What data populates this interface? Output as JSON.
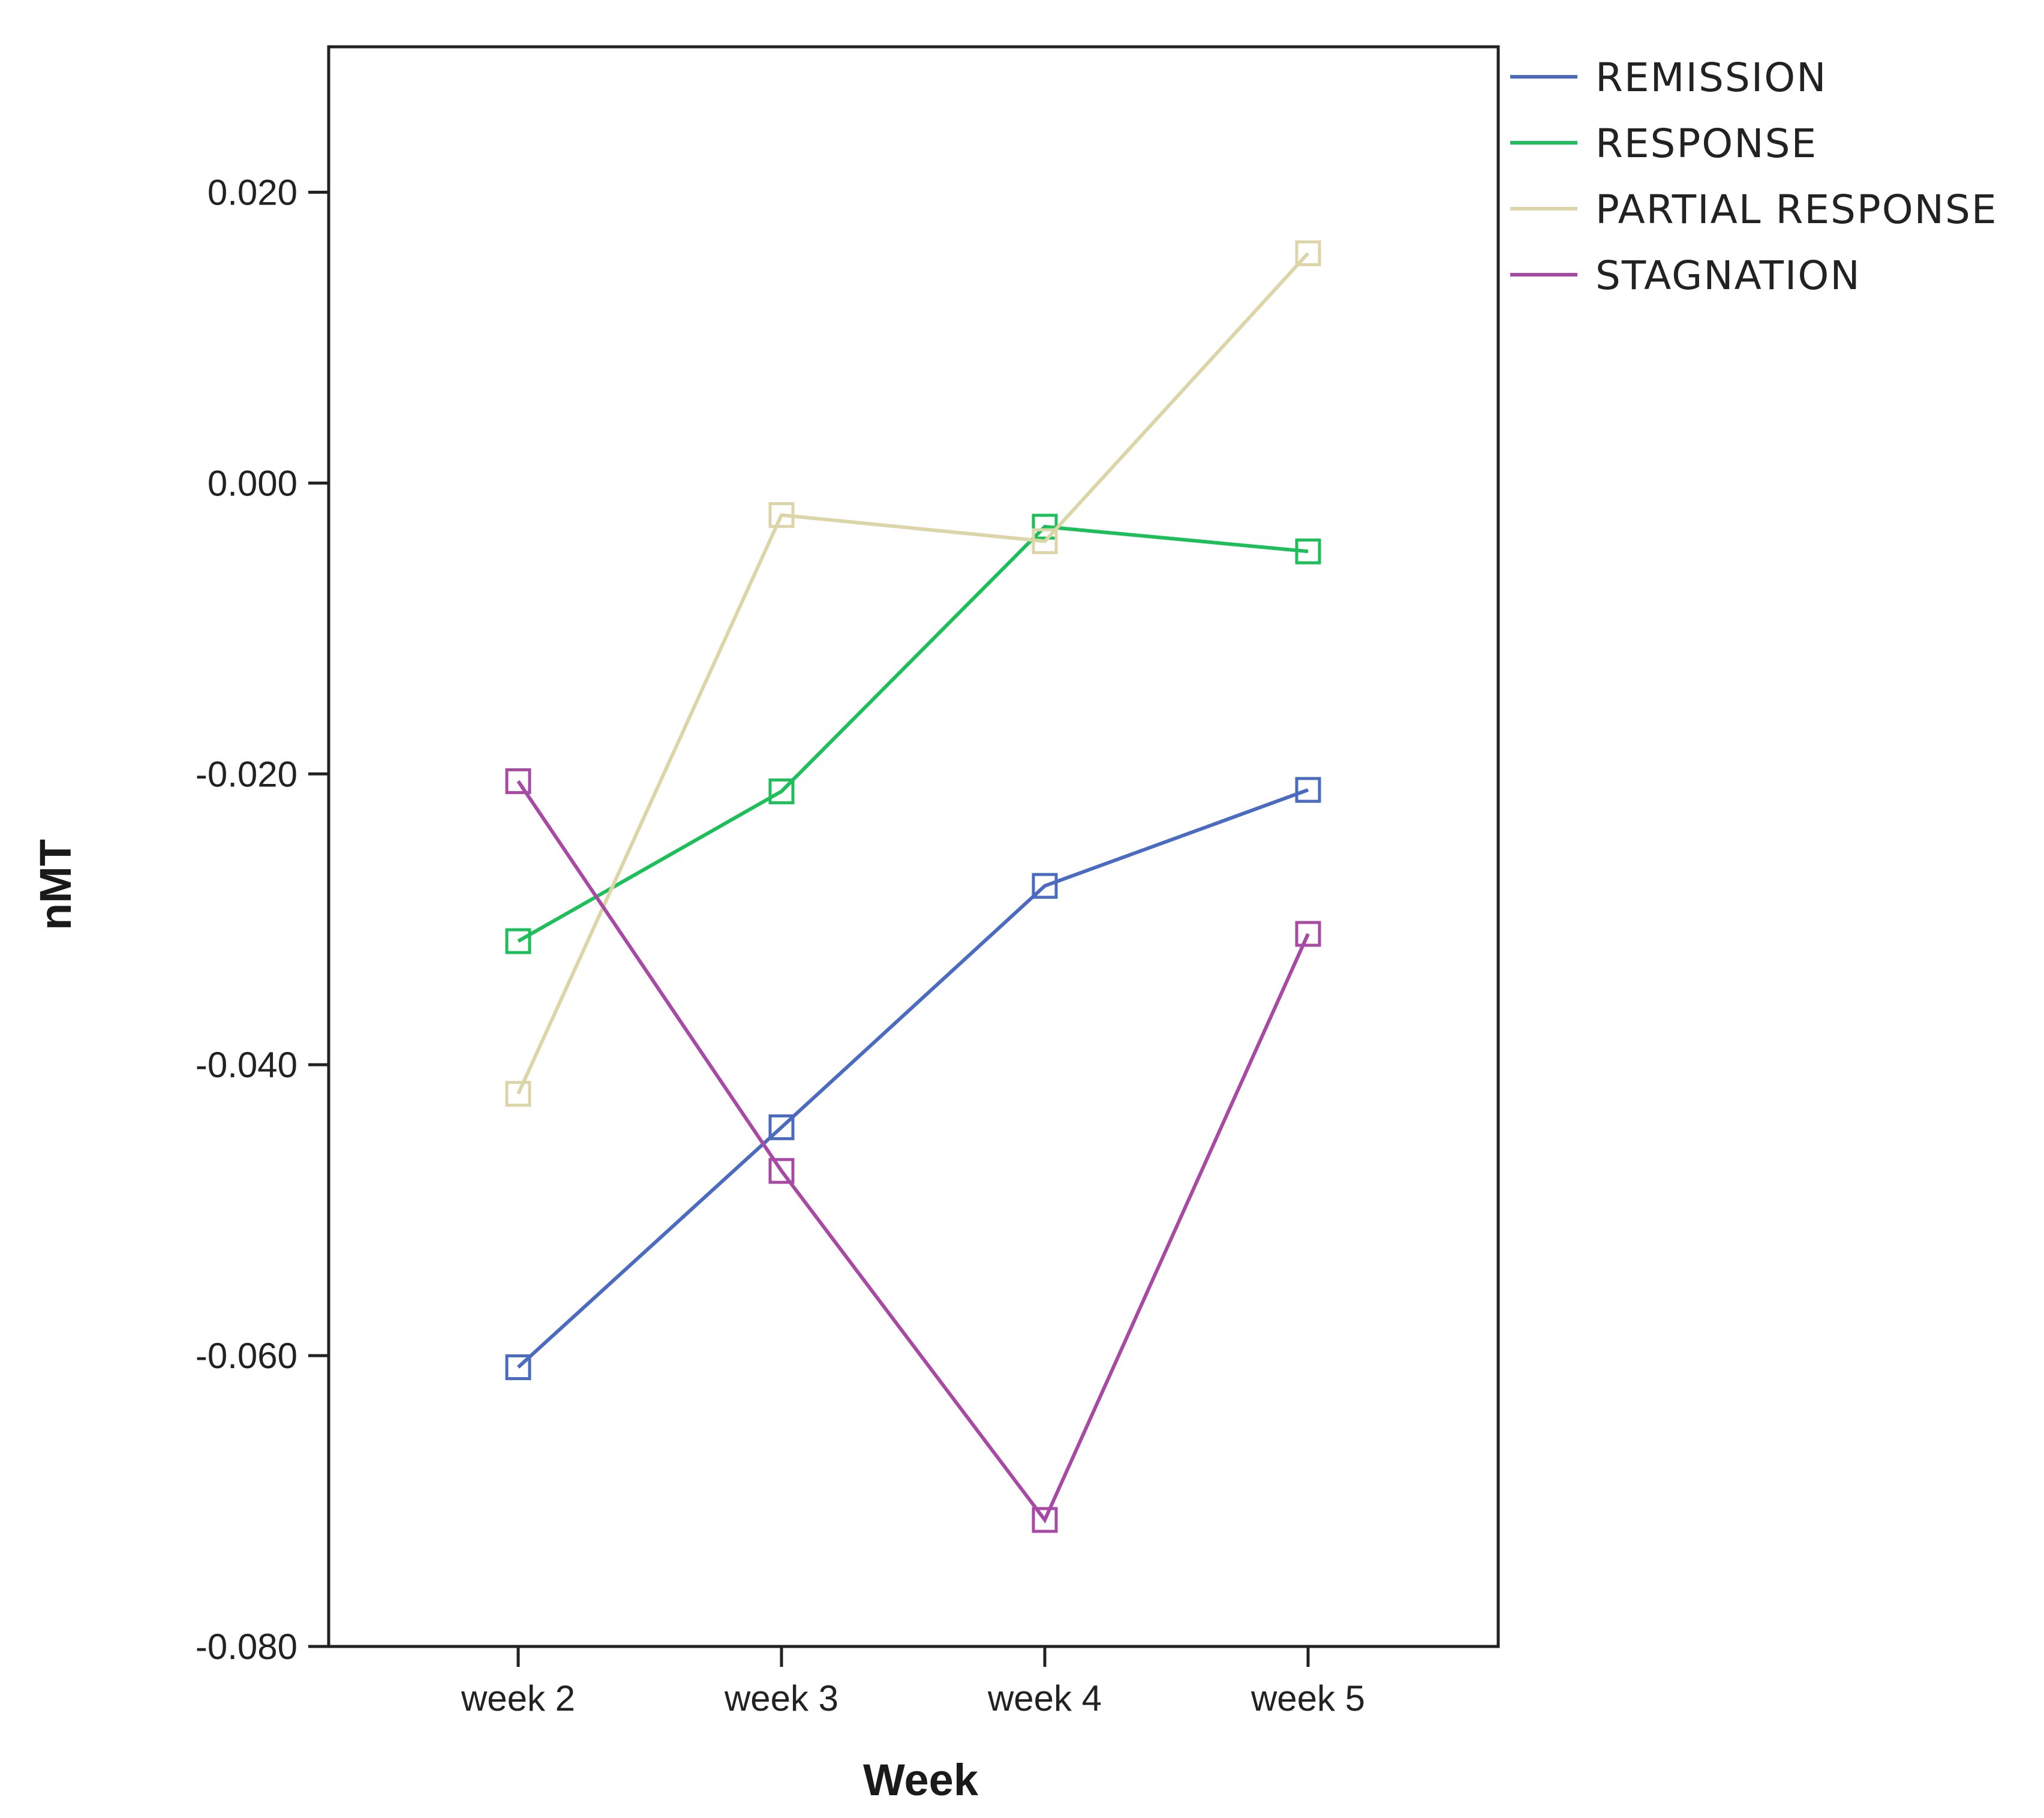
{
  "chart_data": {
    "type": "line",
    "title": "",
    "xlabel": "Week",
    "ylabel": "nMT",
    "categories": [
      "week 2",
      "week 3",
      "week 4",
      "week 5"
    ],
    "ylim": [
      -0.08,
      0.03
    ],
    "yticks": [
      0.02,
      0.0,
      -0.02,
      -0.04,
      -0.06,
      -0.08
    ],
    "ytick_labels": [
      "0.020",
      "0.000",
      "-0.020",
      "-0.040",
      "-0.060",
      "-0.080"
    ],
    "legend_position": "top-right, outside plot",
    "grid": false,
    "marker": "open-square",
    "series": [
      {
        "name": "REMISSION",
        "color": "#4a6bbf",
        "values": [
          -0.0608,
          -0.0443,
          -0.0277,
          -0.0211
        ]
      },
      {
        "name": "RESPONSE",
        "color": "#1dbf5a",
        "values": [
          -0.0315,
          -0.0212,
          -0.003,
          -0.0047
        ]
      },
      {
        "name": "PARTIAL RESPONSE",
        "color": "#dcd5a8",
        "values": [
          -0.042,
          -0.0022,
          -0.004,
          0.0158
        ]
      },
      {
        "name": "STAGNATION",
        "color": "#a84aa4",
        "values": [
          -0.0205,
          -0.0473,
          -0.0713,
          -0.031
        ]
      }
    ]
  }
}
